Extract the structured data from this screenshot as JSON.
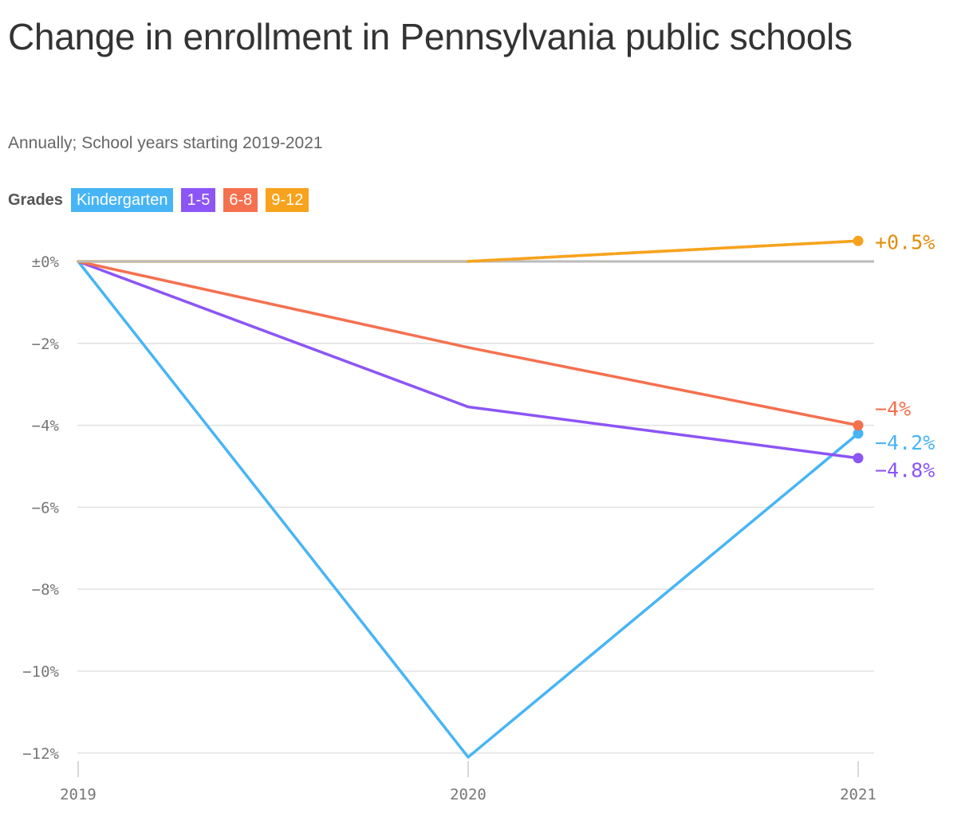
{
  "title": "Change in enrollment in Pennsylvania public schools",
  "subtitle": "Annually; School years starting 2019-2021",
  "legend": {
    "title": "Grades",
    "items": [
      {
        "label": "Kindergarten",
        "color": "#47b5f5"
      },
      {
        "label": "1-5",
        "color": "#8c55f5"
      },
      {
        "label": "6-8",
        "color": "#f5704f"
      },
      {
        "label": "9-12",
        "color": "#f7a31e"
      }
    ]
  },
  "chart_data": {
    "type": "line",
    "title": "Change in enrollment in Pennsylvania public schools",
    "subtitle": "Annually; School years starting 2019-2021",
    "x": [
      "2019",
      "2020",
      "2021"
    ],
    "xlabel": "",
    "ylabel": "",
    "ylim": [
      -12,
      0.5
    ],
    "yticks": [
      0,
      -2,
      -4,
      -6,
      -8,
      -10,
      -12
    ],
    "ytick_labels": [
      "±0%",
      "−2%",
      "−4%",
      "−6%",
      "−8%",
      "−10%",
      "−12%"
    ],
    "grid": true,
    "legend_position": "top-left",
    "series": [
      {
        "name": "Kindergarten",
        "color": "#47b5f5",
        "values": [
          0,
          -12.1,
          -4.2
        ],
        "end_label": "−4.2%"
      },
      {
        "name": "1-5",
        "color": "#8c55f5",
        "values": [
          0,
          -3.55,
          -4.8
        ],
        "end_label": "−4.8%"
      },
      {
        "name": "6-8",
        "color": "#f5704f",
        "values": [
          0,
          -2.1,
          -4.0
        ],
        "end_label": "−4%"
      },
      {
        "name": "9-12",
        "color": "#f7a31e",
        "values": [
          0,
          0,
          0.5
        ],
        "end_label": "+0.5%"
      }
    ]
  }
}
